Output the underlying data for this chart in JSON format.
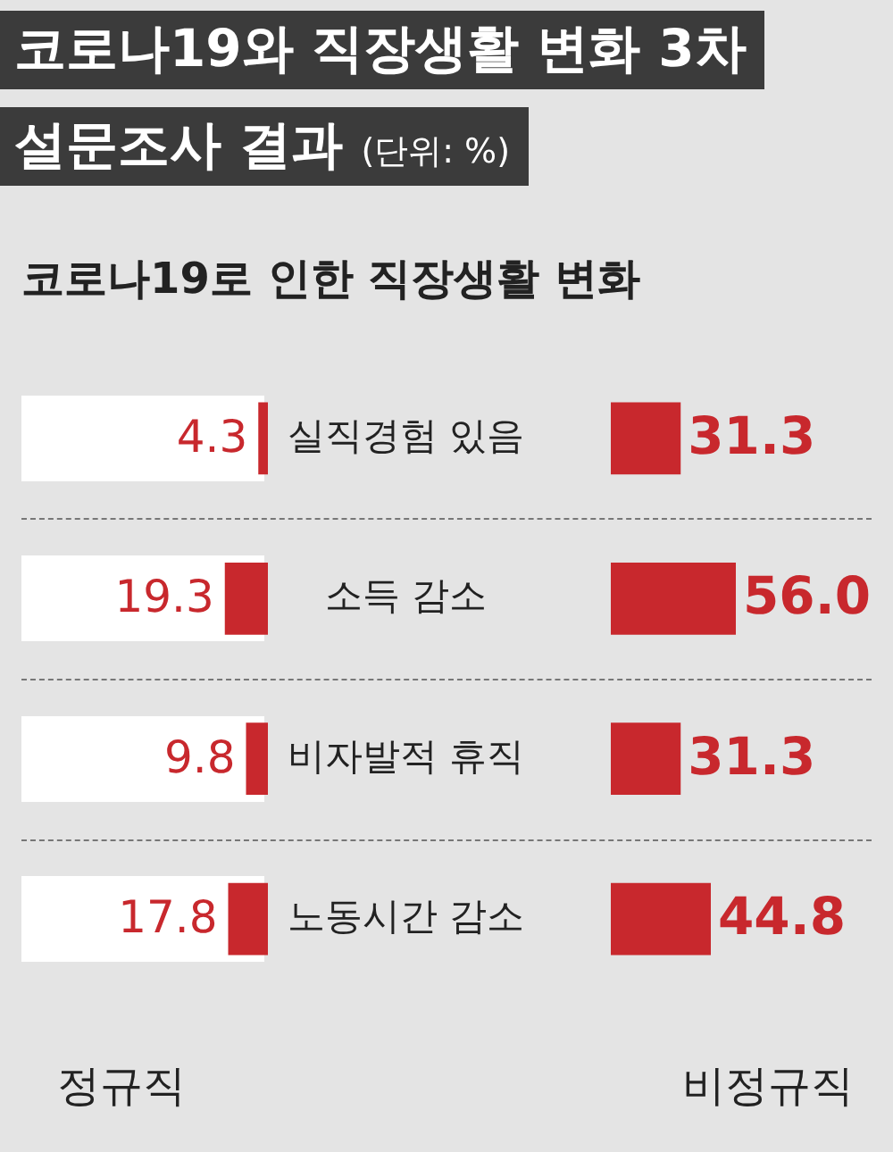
{
  "chart_data": [
    {
      "type": "bar",
      "title": "코로나19와 직장생활 변화 3차 설문조사 결과",
      "annotations": [
        "(단위: %)"
      ],
      "subtitle": "코로나19로 인한 직장생활 변화",
      "orientation": "horizontal",
      "categories": [
        "실직경험 있음",
        "소득 감소",
        "비자발적 휴직",
        "노동시간 감소"
      ],
      "tick_labels": "y",
      "series": [
        {
          "name": "정규직",
          "color": "#c8282d",
          "values": [
            4.3,
            19.3,
            9.8,
            17.8
          ],
          "value_labels": [
            "4.3",
            "19.3",
            "9.8",
            "17.8"
          ]
        }
      ]
    },
    {
      "type": "bar",
      "orientation": "horizontal",
      "categories": [
        null,
        null,
        null,
        null
      ],
      "tick_labels": false,
      "series": [
        {
          "name": "비정규직",
          "color": "#c8282d",
          "values": [
            31.3,
            56.0,
            31.3,
            44.8
          ],
          "value_labels": [
            "31.3",
            "56.0",
            "31.3",
            "44.8"
          ]
        }
      ]
    }
  ]
}
